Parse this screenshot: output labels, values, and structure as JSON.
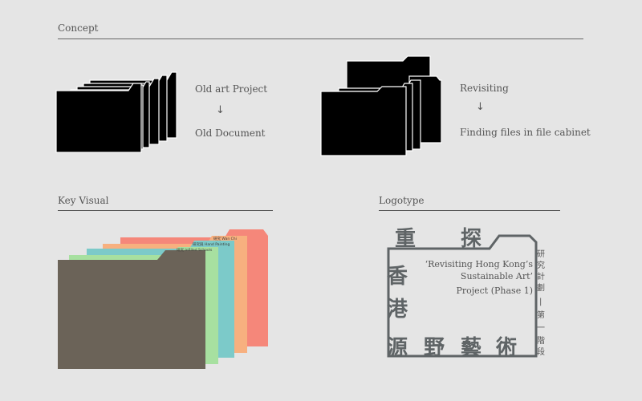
{
  "concept": {
    "title": "Concept",
    "left": {
      "line1": "Old art Project",
      "arrow": "↓",
      "line2": "Old Document"
    },
    "right": {
      "line1": "Revisiting",
      "arrow": "↓",
      "line2": "Finding files in file cabinet"
    }
  },
  "key_visual": {
    "title": "Key Visual",
    "tab_labels": [
      "研究 Wan Chi",
      "研究與 Hand Painting",
      "研究 Infilled Schools"
    ],
    "colors": {
      "folder_main": "#6b6358",
      "green": "#a7e0a0",
      "teal": "#7ccac9",
      "peach": "#f7b07f",
      "coral": "#f5877a"
    }
  },
  "logotype": {
    "title": "Logotype",
    "chars_top": [
      "重",
      "探"
    ],
    "chars_left": [
      "香",
      "港"
    ],
    "chars_bottom": [
      "源",
      "野",
      "藝",
      "術"
    ],
    "english_line1": "‘Revisiting Hong Kong’s",
    "english_line2": "Sustainable Art’",
    "english_line3": "Project (Phase 1)",
    "vertical": [
      "研",
      "究",
      "計",
      "劃",
      "|",
      "第",
      "一",
      "階",
      "段"
    ],
    "color": "#5f6466"
  }
}
